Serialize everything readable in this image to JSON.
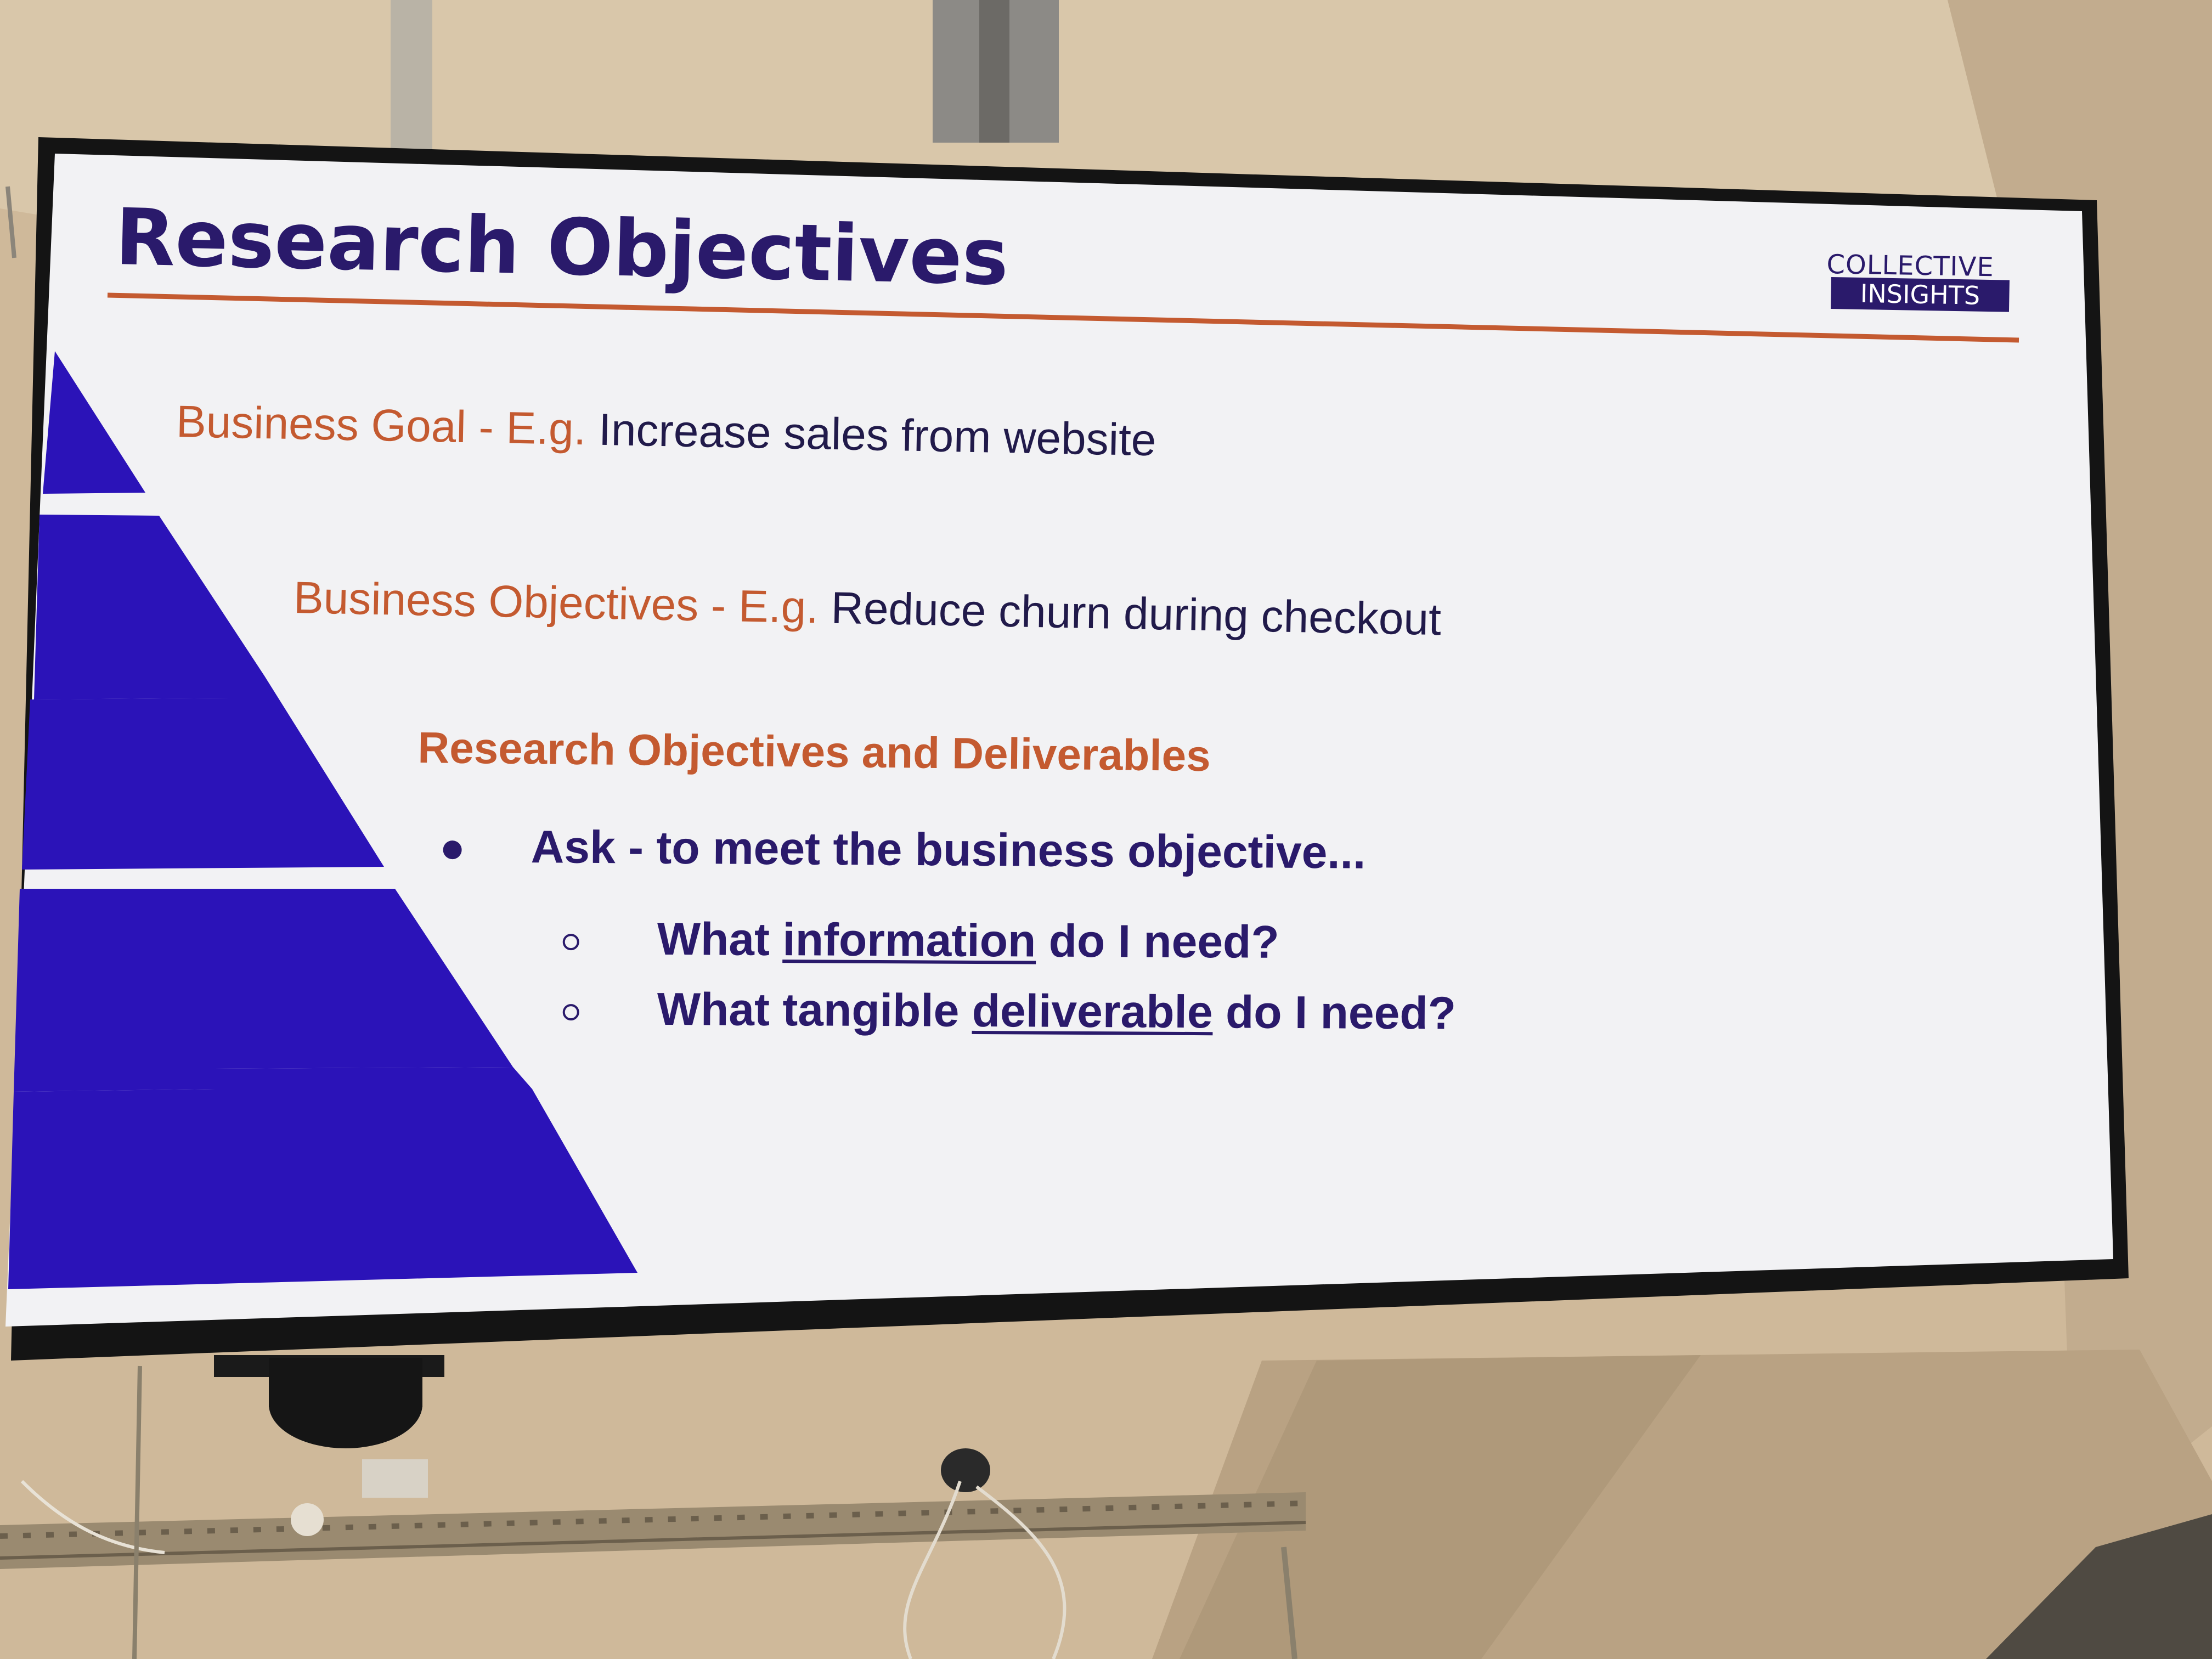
{
  "slide": {
    "title": "Research Objectives",
    "brand": {
      "line1": "COLLECTIVE",
      "line2": "INSIGHTS"
    },
    "goal": {
      "label": "Business Goal - E.g.",
      "text": "Increase sales from website"
    },
    "objectives": {
      "label": "Business Objectives - E.g.",
      "text": "Reduce churn during checkout"
    },
    "section_heading": "Research Objectives and Deliverables",
    "bullet": "Ask - to meet the business objective...",
    "sub_items": [
      {
        "before": "What",
        "emphasis": "information",
        "after": "do I need?"
      },
      {
        "before": "What tangible",
        "emphasis": "deliverable",
        "after": "do I need?"
      }
    ]
  },
  "colors": {
    "navy": "#2a1a6b",
    "pyramid_blue": "#2b13b8",
    "accent_orange": "#c45a30",
    "slide_background": "#f2f2f4",
    "bezel": "#111111"
  }
}
